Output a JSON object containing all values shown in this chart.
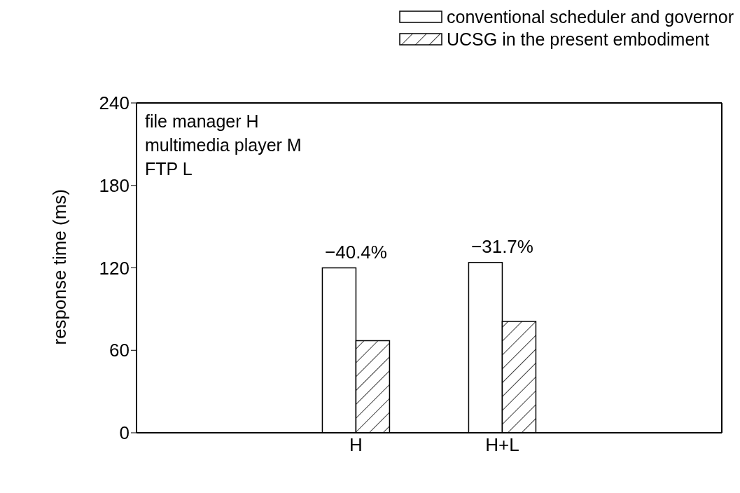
{
  "chart_data": {
    "type": "bar",
    "ylabel": "response time (ms)",
    "categories": [
      null,
      "H",
      "H+L",
      null
    ],
    "series": [
      {
        "name": "conventional scheduler and governor",
        "color": "#ffffff",
        "values": [
          null,
          120,
          124,
          null
        ]
      },
      {
        "name": "UCSG in the present embodiment",
        "color": "#000000",
        "values": [
          null,
          67,
          81,
          null
        ]
      }
    ],
    "ylim": [
      0,
      240
    ],
    "yticks": [
      0,
      60,
      120,
      180,
      240
    ],
    "grid": false,
    "legend": "top right",
    "annotations": [
      "file manager H",
      "multimedia player M",
      "FTP L",
      {
        "text": "−40.4%",
        "x": "H",
        "y": 120
      },
      {
        "text": "−31.7%",
        "x": "H+L",
        "y": 124
      }
    ]
  }
}
